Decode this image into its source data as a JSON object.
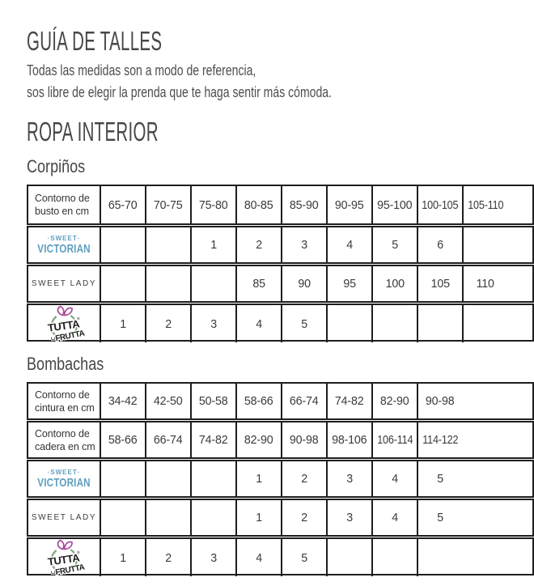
{
  "page": {
    "title": "GUÍA DE TALLES",
    "subtitle_line1": "Todas las medidas son a modo de referencia,",
    "subtitle_line2": "sos libre de elegir la prenda que te haga sentir más cómoda.",
    "section_title": "ROPA INTERIOR"
  },
  "brands": {
    "sweet_victorian": {
      "line1": "·SWEET·",
      "line2": "VICTORIAN",
      "color": "#5e9fc0"
    },
    "sweet_lady": {
      "label": "SWEET LADY",
      "color": "#3d3d3d"
    },
    "tutta_la_frutta": {
      "word1": "TUTTA",
      "word2": "FRUTTA",
      "la": "LA",
      "registered": "®",
      "apple_color": "#7fa878",
      "leaf_color": "#a84a9a",
      "text_color": "#1d1d1d"
    }
  },
  "tables": [
    {
      "id": "corpinos",
      "heading": "Corpiños",
      "rows": [
        {
          "type": "measure",
          "label": [
            "Contorno de",
            "busto en cm"
          ],
          "cells": [
            "65-70",
            "70-75",
            "75-80",
            "80-85",
            "85-90",
            "90-95",
            "95-100",
            "100-105",
            "105-110"
          ]
        },
        {
          "type": "brand",
          "brand": "sweet_victorian",
          "cells": [
            "",
            "",
            "1",
            "2",
            "3",
            "4",
            "5",
            "6",
            ""
          ]
        },
        {
          "type": "brand",
          "brand": "sweet_lady",
          "cells": [
            "",
            "",
            "",
            "85",
            "90",
            "95",
            "100",
            "105",
            "110"
          ]
        },
        {
          "type": "brand",
          "brand": "tutta_la_frutta",
          "cells": [
            "1",
            "2",
            "3",
            "4",
            "5",
            "",
            "",
            "",
            ""
          ]
        }
      ]
    },
    {
      "id": "bombachas",
      "heading": "Bombachas",
      "rows": [
        {
          "type": "measure",
          "label": [
            "Contorno de",
            "cintura en cm"
          ],
          "cells": [
            "34-42",
            "42-50",
            "50-58",
            "58-66",
            "66-74",
            "74-82",
            "82-90",
            "90-98"
          ]
        },
        {
          "type": "measure",
          "label": [
            "Contorno de",
            "cadera en cm"
          ],
          "cells": [
            "58-66",
            "66-74",
            "74-82",
            "82-90",
            "90-98",
            "98-106",
            "106-114",
            "114-122"
          ]
        },
        {
          "type": "brand",
          "brand": "sweet_victorian",
          "cells": [
            "",
            "",
            "",
            "1",
            "2",
            "3",
            "4",
            "5"
          ]
        },
        {
          "type": "brand",
          "brand": "sweet_lady",
          "cells": [
            "",
            "",
            "",
            "1",
            "2",
            "3",
            "4",
            "5"
          ]
        },
        {
          "type": "brand",
          "brand": "tutta_la_frutta",
          "cells": [
            "1",
            "2",
            "3",
            "4",
            "5",
            "",
            "",
            ""
          ]
        }
      ]
    }
  ]
}
